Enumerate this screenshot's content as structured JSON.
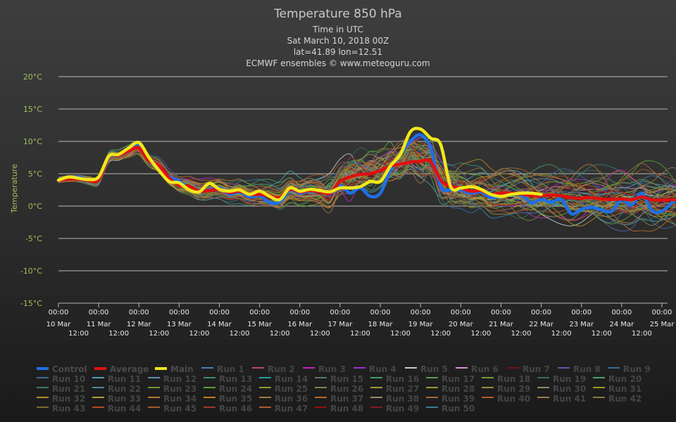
{
  "chart_data": {
    "type": "line",
    "title": "Temperature 850 hPa",
    "subtitles": [
      "Time in UTC",
      "Sat March 10, 2018 00Z",
      "lat=41.89 lon=12.51",
      "ECMWF ensembles © www.meteoguru.com"
    ],
    "ylabel": "Temperature",
    "ylim": [
      -15,
      20
    ],
    "y_ticks": [
      "20°C",
      "15°C",
      "10°C",
      "5°C",
      "0°C",
      "-5°C",
      "-10°C",
      "-15°C"
    ],
    "x_axis": "date",
    "x_ticks_top": [
      "00:00",
      "00:00",
      "00:00",
      "00:00",
      "00:00",
      "00:00",
      "00:00",
      "00:00",
      "00:00",
      "00:00",
      "00:00",
      "00:00",
      "00:00",
      "00:00",
      "00:00",
      "00:00"
    ],
    "x_ticks_dates": [
      "10 Mar",
      "11 Mar",
      "12 Mar",
      "13 Mar",
      "14 Mar",
      "15 Mar",
      "16 Mar",
      "17 Mar",
      "18 Mar",
      "19 Mar",
      "20 Mar",
      "21 Mar",
      "22 Mar",
      "23 Mar",
      "24 Mar",
      "25 Mar"
    ],
    "x_ticks_noon": [
      "12:00",
      "12:00",
      "12:00",
      "12:00",
      "12:00",
      "12:00",
      "12:00",
      "12:00",
      "12:00",
      "12:00",
      "12:00",
      "12:00",
      "12:00",
      "12:00",
      "12:00"
    ],
    "grid": true,
    "legend_position": "bottom",
    "series": [
      {
        "name": "Control",
        "color": "#1f6fe8",
        "values": [
          4,
          4.3,
          4.5,
          4,
          4.2,
          7.5,
          8,
          8.7,
          9.5,
          7,
          6,
          4.5,
          3.8,
          2.8,
          2.2,
          2.5,
          2.8,
          1.8,
          2.2,
          1.4,
          1.6,
          0.5,
          0.6,
          2.5,
          2,
          2.3,
          2.2,
          1.9,
          3.2,
          2,
          2.8,
          1.5,
          2,
          5.5,
          8,
          10,
          11,
          9,
          3,
          2.5,
          2.5,
          2,
          2.2,
          1.3,
          1.5,
          1.8,
          1.8,
          0.5,
          1,
          0.6,
          1,
          -1.2,
          -0.5,
          -0.2,
          -0.6,
          -0.8,
          1,
          0.2,
          2,
          -0.7,
          -0.8,
          0.5,
          1.5,
          0.8,
          1,
          2.2,
          3.2,
          2.6,
          1.8
        ]
      },
      {
        "name": "Average",
        "color": "#e01010",
        "values": [
          4,
          4.2,
          4.2,
          4,
          4.1,
          7.6,
          7.9,
          8.5,
          9,
          7,
          6.3,
          4.3,
          3.2,
          3,
          2.3,
          2.4,
          2.6,
          2.1,
          2.3,
          1.8,
          1.8,
          1.6,
          1.3,
          2.6,
          2.2,
          2.4,
          2.2,
          2,
          3.8,
          4.5,
          4.9,
          5,
          5.5,
          6.2,
          6.5,
          6.8,
          6.9,
          6.9,
          4,
          3,
          2.8,
          2.3,
          2.4,
          1.8,
          2,
          2,
          1.9,
          1.6,
          1.6,
          1.7,
          1.6,
          1.3,
          1.2,
          1.3,
          1.1,
          1,
          1.1,
          1,
          1.4,
          1,
          0.9,
          1,
          0.9,
          1,
          0.8,
          0.9,
          1.5,
          0.8,
          0.5
        ]
      },
      {
        "name": "Main",
        "color": "#f0e81a",
        "values": [
          4,
          4.5,
          4.3,
          4.1,
          4.5,
          7.7,
          8,
          9,
          9.8,
          7.5,
          5.5,
          3.8,
          3.6,
          2.5,
          2.2,
          3.5,
          2.6,
          2.3,
          2.5,
          1.8,
          2.3,
          1.5,
          1,
          2.8,
          2.3,
          2.6,
          2.4,
          2.2,
          2.8,
          2.8,
          3,
          3.8,
          3.8,
          6.2,
          8,
          11.5,
          11.9,
          10.5,
          9.5,
          3,
          2.8,
          3,
          2.6,
          1.8,
          1.5,
          1.8,
          2,
          2,
          1.8
        ]
      },
      {
        "name": "Run 1",
        "color": "#4a7fb5"
      },
      {
        "name": "Run 2",
        "color": "#b84a6a"
      },
      {
        "name": "Run 3",
        "color": "#c020c8"
      },
      {
        "name": "Run 4",
        "color": "#9a30d0"
      },
      {
        "name": "Run 5",
        "color": "#c8c8c8"
      },
      {
        "name": "Run 6",
        "color": "#d890d8"
      },
      {
        "name": "Run 7",
        "color": "#7a1010"
      },
      {
        "name": "Run 8",
        "color": "#5a5ab0"
      },
      {
        "name": "Run 9",
        "color": "#3a6a9a"
      },
      {
        "name": "Run 10",
        "color": "#3a6a9a"
      },
      {
        "name": "Run 11",
        "color": "#4aa0b0"
      },
      {
        "name": "Run 12",
        "color": "#5a90b0"
      },
      {
        "name": "Run 13",
        "color": "#3a8a7a"
      },
      {
        "name": "Run 14",
        "color": "#20a0a0"
      },
      {
        "name": "Run 15",
        "color": "#5a7a5a"
      },
      {
        "name": "Run 16",
        "color": "#4a9a5a"
      },
      {
        "name": "Run 17",
        "color": "#5aa040"
      },
      {
        "name": "Run 18",
        "color": "#6aa040"
      },
      {
        "name": "Run 19",
        "color": "#3a6a5a"
      },
      {
        "name": "Run 20",
        "color": "#50a060"
      },
      {
        "name": "Run 21",
        "color": "#3a7a6a"
      },
      {
        "name": "Run 22",
        "color": "#4a8a9a"
      },
      {
        "name": "Run 23",
        "color": "#6a9a30"
      },
      {
        "name": "Run 24",
        "color": "#5aa030"
      },
      {
        "name": "Run 25",
        "color": "#8a9a30"
      },
      {
        "name": "Run 26",
        "color": "#7a8a50"
      },
      {
        "name": "Run 27",
        "color": "#9a9a40"
      },
      {
        "name": "Run 28",
        "color": "#a09a30"
      },
      {
        "name": "Run 29",
        "color": "#a08a40"
      },
      {
        "name": "Run 30",
        "color": "#8a8a70"
      },
      {
        "name": "Run 31",
        "color": "#9a9a20"
      },
      {
        "name": "Run 32",
        "color": "#b08a30"
      },
      {
        "name": "Run 33",
        "color": "#b09a40"
      },
      {
        "name": "Run 34",
        "color": "#b07a30"
      },
      {
        "name": "Run 35",
        "color": "#c08020"
      },
      {
        "name": "Run 36",
        "color": "#a07a40"
      },
      {
        "name": "Run 37",
        "color": "#b06a30"
      },
      {
        "name": "Run 38",
        "color": "#9a8a6a"
      },
      {
        "name": "Run 39",
        "color": "#a06a3a"
      },
      {
        "name": "Run 40",
        "color": "#b05a20"
      },
      {
        "name": "Run 41",
        "color": "#a07a50"
      },
      {
        "name": "Run 42",
        "color": "#8a7a40"
      },
      {
        "name": "Run 43",
        "color": "#7a6a30"
      },
      {
        "name": "Run 44",
        "color": "#b04a20"
      },
      {
        "name": "Run 45",
        "color": "#a05a30"
      },
      {
        "name": "Run 46",
        "color": "#a03a2a"
      },
      {
        "name": "Run 47",
        "color": "#b05a30"
      },
      {
        "name": "Run 48",
        "color": "#901010"
      },
      {
        "name": "Run 49",
        "color": "#801a2a"
      },
      {
        "name": "Run 50",
        "color": "#3a7aa0"
      }
    ]
  }
}
